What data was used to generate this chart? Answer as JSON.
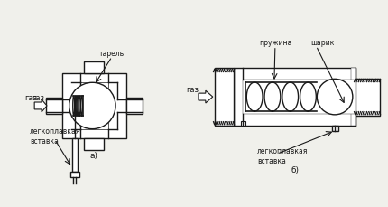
{
  "bg_color": "#f0f0eb",
  "line_color": "#1a1a1a",
  "line_width": 1.0,
  "fig_width": 4.3,
  "fig_height": 2.3,
  "label_a": "а)",
  "label_b": "б)",
  "gas_label": "газ",
  "tarelj_label": "тарель",
  "legko_label_a": "легкоплавкая\nвставка",
  "legko_label_b": "легкоплавкая\nвставка",
  "pruzhina_label": "пружина",
  "sharik_label": "шарик",
  "font_size": 5.5
}
